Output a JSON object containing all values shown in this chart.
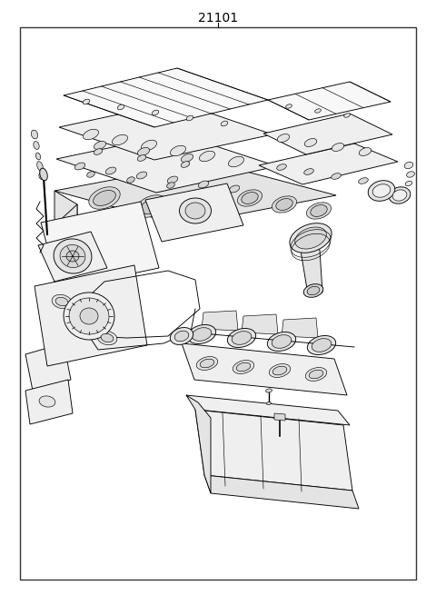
{
  "title": "21101",
  "title_fontsize": 10,
  "bg_color": "#ffffff",
  "border_color": "#333333",
  "border_linewidth": 1.0,
  "fig_width": 4.8,
  "fig_height": 6.55,
  "dpi": 100
}
